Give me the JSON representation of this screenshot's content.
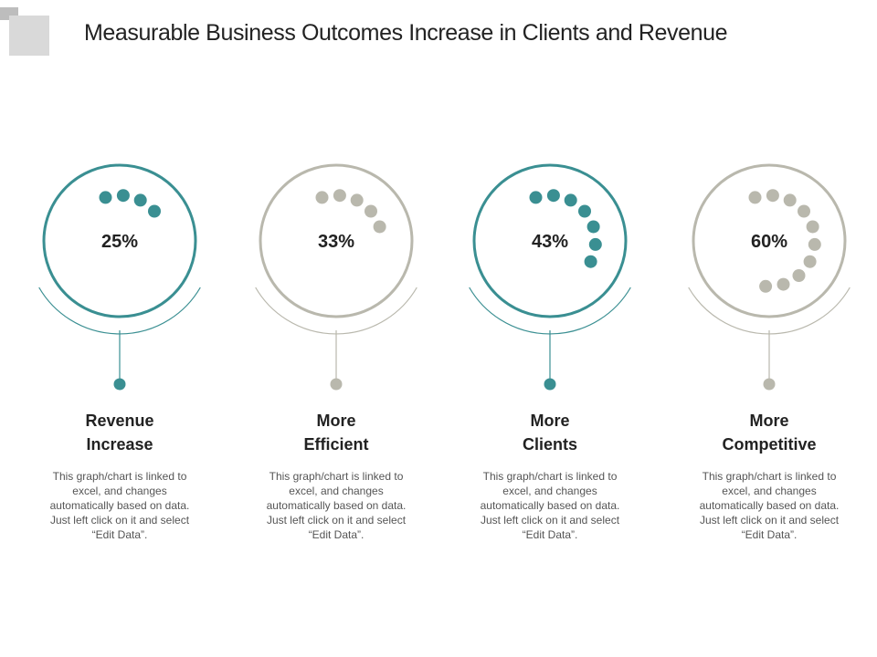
{
  "title": "Measurable Business Outcomes Increase in Clients and Revenue",
  "colors": {
    "teal": "#3a8f92",
    "gray": "#b9b8ad",
    "text": "#222222",
    "muted": "#555555"
  },
  "chart_data": {
    "type": "radial-dot-progress",
    "metrics": [
      {
        "value": 25,
        "label": "25%",
        "title_line1": "Revenue",
        "title_line2": "Increase",
        "color": "teal",
        "description": "This graph/chart is linked to excel, and changes automatically based on data. Just left click on it and select “Edit Data”."
      },
      {
        "value": 33,
        "label": "33%",
        "title_line1": "More",
        "title_line2": "Efficient",
        "color": "gray",
        "description": "This graph/chart is linked to excel, and changes automatically based on data. Just left click on it and select “Edit Data”."
      },
      {
        "value": 43,
        "label": "43%",
        "title_line1": "More",
        "title_line2": "Clients",
        "color": "teal",
        "description": "This graph/chart is linked to excel, and changes automatically based on data. Just left click on it and select “Edit Data”."
      },
      {
        "value": 60,
        "label": "60%",
        "title_line1": "More",
        "title_line2": "Competitive",
        "color": "gray",
        "description": "This graph/chart is linked to excel, and changes automatically based on data. Just left click on it and select “Edit Data”."
      }
    ]
  }
}
